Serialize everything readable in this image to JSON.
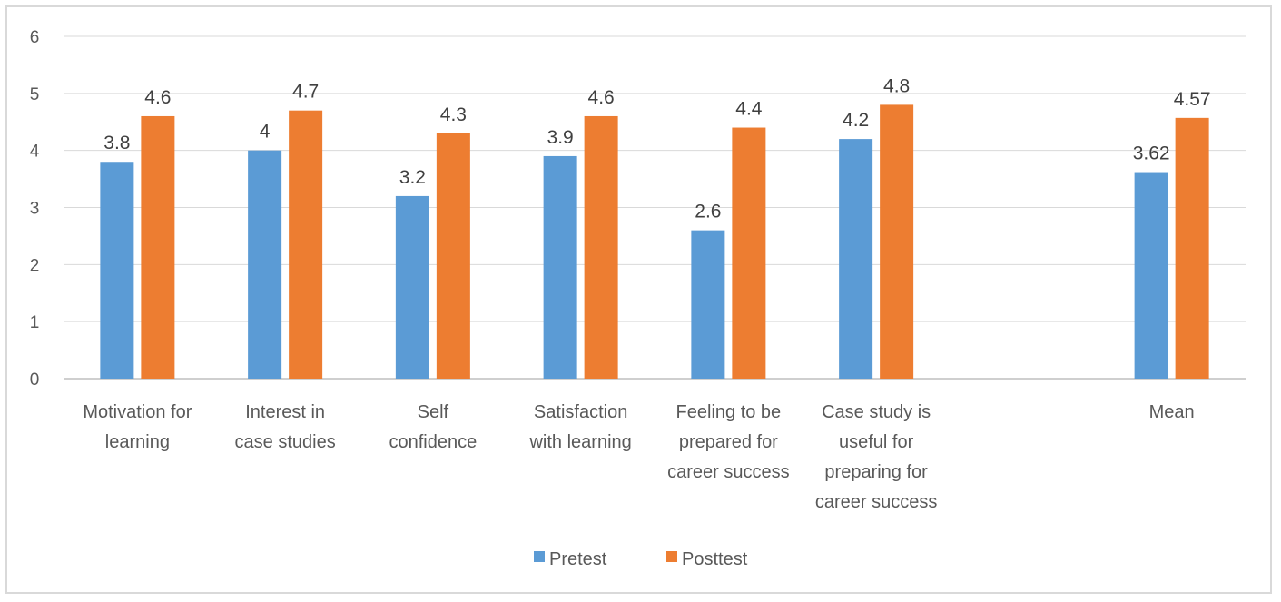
{
  "chart_data": {
    "type": "bar",
    "title": "",
    "xlabel": "",
    "ylabel": "",
    "ylim": [
      0,
      6
    ],
    "yticks": [
      0,
      1,
      2,
      3,
      4,
      5,
      6
    ],
    "grid": true,
    "legend_position": "bottom",
    "categories": [
      [
        "Motivation for",
        "learning"
      ],
      [
        "Interest in",
        "case studies"
      ],
      [
        "Self",
        "confidence"
      ],
      [
        "Satisfaction",
        "with learning"
      ],
      [
        "Feeling to be",
        "prepared for",
        "career success"
      ],
      [
        "Case study is",
        "useful for",
        "preparing for",
        "career success"
      ],
      [
        ""
      ],
      [
        "Mean"
      ]
    ],
    "series": [
      {
        "name": "Pretest",
        "color": "#5b9bd5",
        "values": [
          3.8,
          4,
          3.2,
          3.9,
          2.6,
          4.2,
          null,
          3.62
        ],
        "labels": [
          "3.8",
          "4",
          "3.2",
          "3.9",
          "2.6",
          "4.2",
          "",
          "3.62"
        ]
      },
      {
        "name": "Posttest",
        "color": "#ed7d31",
        "values": [
          4.6,
          4.7,
          4.3,
          4.6,
          4.4,
          4.8,
          null,
          4.57
        ],
        "labels": [
          "4.6",
          "4.7",
          "4.3",
          "4.6",
          "4.4",
          "4.8",
          "",
          "4.57"
        ]
      }
    ]
  }
}
